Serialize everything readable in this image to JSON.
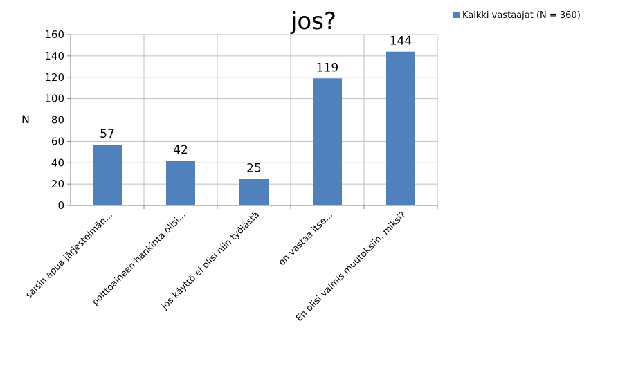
{
  "chart_data": {
    "type": "bar",
    "title": "jos?",
    "ylabel": "N",
    "xlabel": "",
    "categories": [
      "saisin apua järjestelmän...",
      "polttoaineen hankinta olisi...",
      "jos käyttö ei olisi niin työlästä",
      "en vastaa itse...",
      "En olisi valmis muutoksiin, miksi?"
    ],
    "series": [
      {
        "name": "Kaikki vastaajat (N = 360)",
        "values": [
          57,
          42,
          25,
          119,
          144
        ],
        "color": "#4F81BD"
      }
    ],
    "ylim": [
      0,
      160
    ],
    "yticks": [
      0,
      20,
      40,
      60,
      80,
      100,
      120,
      140,
      160
    ],
    "grid": true,
    "legend": "top-right",
    "data_labels": true
  }
}
